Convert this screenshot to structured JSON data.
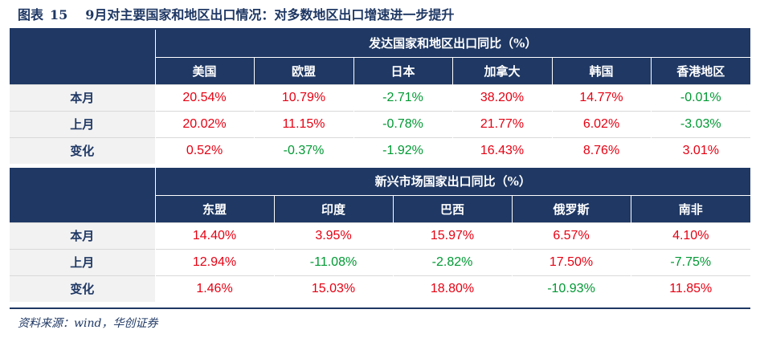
{
  "figure": {
    "label": "图表",
    "number": "15",
    "caption": "9月对主要国家和地区出口情况：对多数地区出口增速进一步提升"
  },
  "developed": {
    "group_label": "发达国家和地区出口同比（%）",
    "columns": [
      "美国",
      "欧盟",
      "日本",
      "加拿大",
      "韩国",
      "香港地区"
    ],
    "rows": [
      {
        "label": "本月",
        "values": [
          "20.54%",
          "10.79%",
          "-2.71%",
          "38.20%",
          "14.77%",
          "-0.01%"
        ]
      },
      {
        "label": "上月",
        "values": [
          "20.02%",
          "11.15%",
          "-0.78%",
          "21.77%",
          "6.02%",
          "-3.03%"
        ]
      },
      {
        "label": "变化",
        "values": [
          "0.52%",
          "-0.37%",
          "-1.92%",
          "16.43%",
          "8.76%",
          "3.01%"
        ]
      }
    ]
  },
  "emerging": {
    "group_label": "新兴市场国家出口同比（%）",
    "columns": [
      "东盟",
      "印度",
      "巴西",
      "俄罗斯",
      "南非"
    ],
    "rows": [
      {
        "label": "本月",
        "values": [
          "14.40%",
          "3.95%",
          "15.97%",
          "6.57%",
          "4.10%"
        ]
      },
      {
        "label": "上月",
        "values": [
          "12.94%",
          "-11.08%",
          "-2.82%",
          "17.50%",
          "-7.75%"
        ]
      },
      {
        "label": "变化",
        "values": [
          "1.46%",
          "15.03%",
          "18.80%",
          "-10.93%",
          "11.85%"
        ]
      }
    ]
  },
  "source": "资料来源：wind，华创证券",
  "colors": {
    "header_bg": "#1f3864",
    "positive": "#e60012",
    "negative": "#009933",
    "row_head_bg": "#f2f2f2"
  }
}
